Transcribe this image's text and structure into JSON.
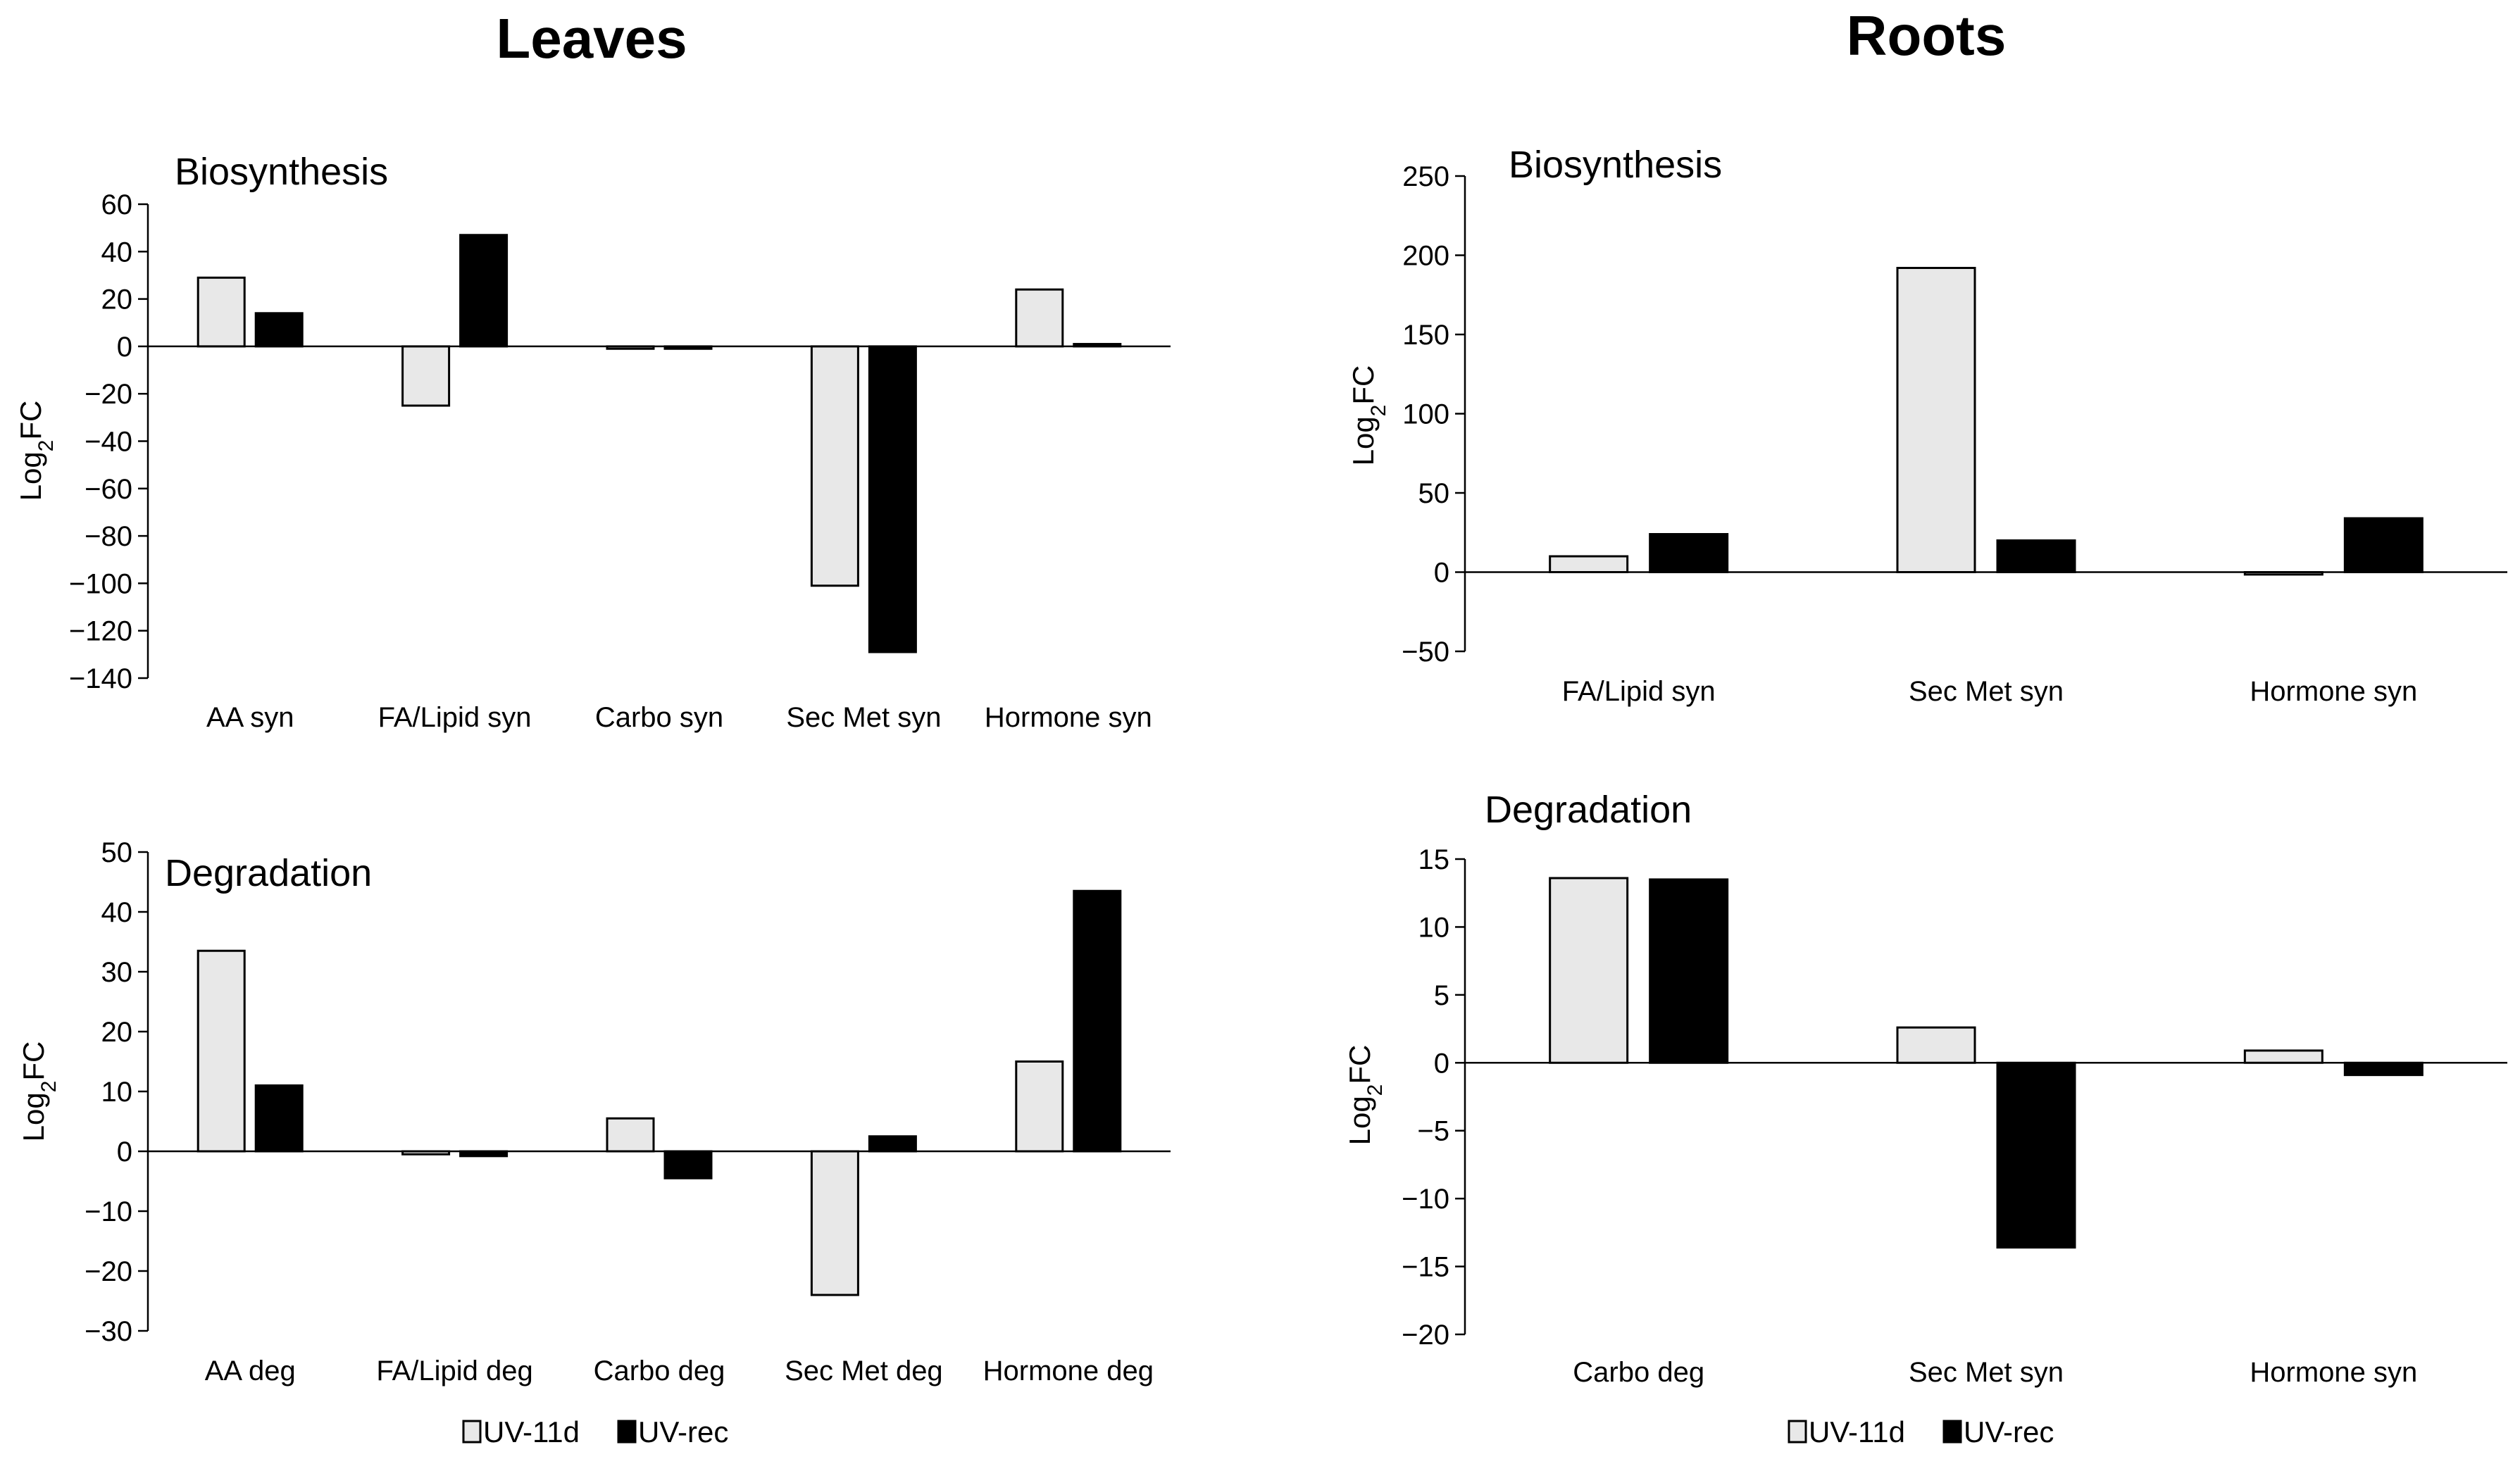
{
  "columns": {
    "left_title": "Leaves",
    "right_title": "Roots"
  },
  "colors": {
    "uv11d_fill": "#e8e8e8",
    "uvrec_fill": "#000000",
    "stroke": "#000000",
    "axis": "#000000"
  },
  "legend": {
    "left": {
      "uv11d": "UV-11d",
      "uvrec": "UV-rec"
    },
    "right": {
      "uv11d": "UV-11d",
      "uvrec": "UV-rec"
    }
  },
  "chart_data": [
    {
      "type": "bar",
      "panel": "leaves-biosynthesis",
      "title": "Biosynthesis",
      "ylabel": "Log2FC",
      "ylim": [
        -140,
        60
      ],
      "yticks": [
        60,
        40,
        20,
        0,
        -20,
        -40,
        -60,
        -80,
        -100,
        -120,
        -140
      ],
      "ytick_labels": [
        "60",
        "40",
        "20",
        "0",
        "−20",
        "−40",
        "−60",
        "−80",
        "−100",
        "−120",
        "−140"
      ],
      "categories": [
        "AA syn",
        "FA/Lipid syn",
        "Carbo syn",
        "Sec Met syn",
        "Hormone syn"
      ],
      "series": [
        {
          "name": "UV-11d",
          "values": [
            29,
            -25,
            -1,
            -101,
            24
          ]
        },
        {
          "name": "UV-rec",
          "values": [
            14,
            47,
            -1,
            -129,
            1
          ]
        }
      ]
    },
    {
      "type": "bar",
      "panel": "leaves-degradation",
      "title": "Degradation",
      "ylabel": "Log2FC",
      "ylim": [
        -30,
        50
      ],
      "yticks": [
        50,
        40,
        30,
        20,
        10,
        0,
        -10,
        -20,
        -30
      ],
      "ytick_labels": [
        "50",
        "40",
        "30",
        "20",
        "10",
        "0",
        "−10",
        "−20",
        "−30"
      ],
      "categories": [
        "AA deg",
        "FA/Lipid deg",
        "Carbo deg",
        "Sec Met deg",
        "Hormone deg"
      ],
      "series": [
        {
          "name": "UV-11d",
          "values": [
            33.5,
            -0.5,
            5.5,
            -24,
            15
          ]
        },
        {
          "name": "UV-rec",
          "values": [
            11,
            -0.8,
            -4.5,
            2.5,
            43.5
          ]
        }
      ]
    },
    {
      "type": "bar",
      "panel": "roots-biosynthesis",
      "title": "Biosynthesis",
      "ylabel": "Log2FC",
      "ylim": [
        -50,
        250
      ],
      "yticks": [
        250,
        200,
        150,
        100,
        50,
        0,
        -50
      ],
      "ytick_labels": [
        "250",
        "200",
        "150",
        "100",
        "50",
        "0",
        "−50"
      ],
      "categories": [
        "FA/Lipid syn",
        "Sec Met syn",
        "Hormone syn"
      ],
      "series": [
        {
          "name": "UV-11d",
          "values": [
            10,
            192,
            -1.5
          ]
        },
        {
          "name": "UV-rec",
          "values": [
            24,
            20,
            34
          ]
        }
      ]
    },
    {
      "type": "bar",
      "panel": "roots-degradation",
      "title": "Degradation",
      "ylabel": "Log2FC",
      "ylim": [
        -20,
        15
      ],
      "yticks": [
        15,
        10,
        5,
        0,
        -5,
        -10,
        -15,
        -20
      ],
      "ytick_labels": [
        "15",
        "10",
        "5",
        "0",
        "−5",
        "−10",
        "−15",
        "−20"
      ],
      "categories": [
        "Carbo deg",
        "Sec Met syn",
        "Hormone syn"
      ],
      "series": [
        {
          "name": "UV-11d",
          "values": [
            13.6,
            2.6,
            0.9
          ]
        },
        {
          "name": "UV-rec",
          "values": [
            13.5,
            -13.6,
            -0.9
          ]
        }
      ]
    }
  ]
}
